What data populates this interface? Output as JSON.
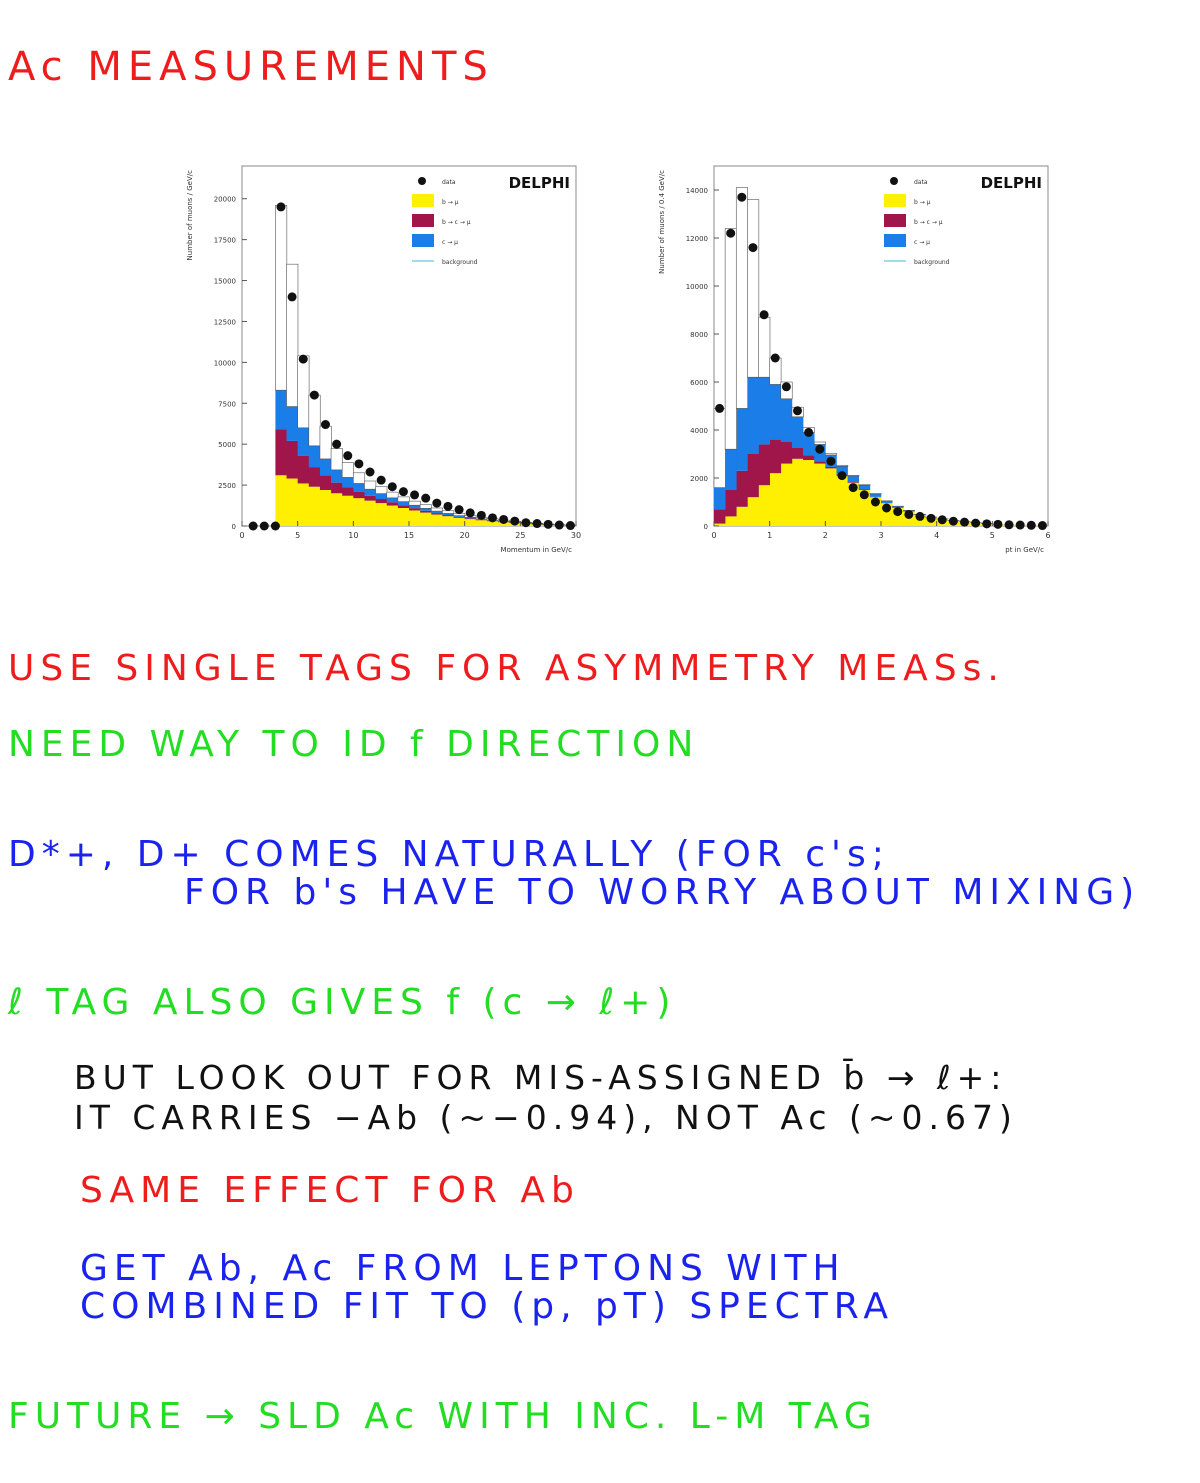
{
  "title": "Ac MEASUREMENTS",
  "charts": [
    {
      "experiment": "DELPHI",
      "ylabel": "Number of muons / GeV/c",
      "xlabel": "Momentum in GeV/c",
      "legend": [
        "data",
        "b → μ",
        "b → c → μ",
        "c → μ",
        "background"
      ]
    },
    {
      "experiment": "DELPHI",
      "ylabel": "Number of muons / 0.4 GeV/c",
      "xlabel": "pt in GeV/c",
      "legend": [
        "data",
        "b → μ",
        "b → c → μ",
        "c → μ",
        "background"
      ]
    }
  ],
  "chart_data": [
    {
      "type": "bar",
      "title": "DELPHI",
      "xlabel": "Momentum in GeV/c",
      "ylabel": "Number of muons / GeV/c",
      "xlim": [
        0,
        30
      ],
      "ylim": [
        0,
        22000
      ],
      "x_ticks": [
        0,
        5,
        10,
        15,
        20,
        25,
        30
      ],
      "y_ticks": [
        0,
        2500,
        5000,
        7500,
        10000,
        12500,
        15000,
        17500,
        20000
      ],
      "bin_edges": [
        3,
        4,
        5,
        6,
        7,
        8,
        9,
        10,
        11,
        12,
        13,
        14,
        15,
        16,
        17,
        18,
        19,
        20,
        21,
        22,
        23,
        24,
        25,
        26,
        27,
        28,
        29,
        30
      ],
      "series": [
        {
          "name": "b → μ",
          "color": "#ffef00",
          "values": [
            3100,
            2900,
            2600,
            2400,
            2200,
            2000,
            1850,
            1700,
            1550,
            1400,
            1250,
            1100,
            950,
            820,
            700,
            600,
            500,
            420,
            350,
            290,
            230,
            180,
            140,
            100,
            70,
            50,
            30
          ]
        },
        {
          "name": "b → c → μ",
          "color": "#a0154a",
          "values": [
            2800,
            2300,
            1700,
            1200,
            900,
            650,
            500,
            400,
            300,
            250,
            200,
            170,
            140,
            110,
            90,
            70,
            55,
            45,
            35,
            28,
            22,
            18,
            14,
            10,
            8,
            6,
            4
          ]
        },
        {
          "name": "c → μ",
          "color": "#1a7de8",
          "values": [
            2400,
            2100,
            1700,
            1300,
            1000,
            780,
            620,
            500,
            400,
            330,
            270,
            220,
            180,
            150,
            120,
            100,
            80,
            65,
            50,
            40,
            32,
            25,
            20,
            15,
            12,
            8,
            5
          ]
        },
        {
          "name": "background",
          "color": "#ffffff",
          "values": [
            11300,
            8700,
            4400,
            3100,
            2000,
            1300,
            900,
            650,
            500,
            420,
            350,
            290,
            250,
            220,
            190,
            160,
            140,
            120,
            100,
            85,
            70,
            55,
            45,
            35,
            25,
            15,
            10
          ]
        }
      ],
      "data_points": {
        "name": "data",
        "x": [
          1,
          2,
          3,
          3.5,
          4.5,
          5.5,
          6.5,
          7.5,
          8.5,
          9.5,
          10.5,
          11.5,
          12.5,
          13.5,
          14.5,
          15.5,
          16.5,
          17.5,
          18.5,
          19.5,
          20.5,
          21.5,
          22.5,
          23.5,
          24.5,
          25.5,
          26.5,
          27.5,
          28.5,
          29.5
        ],
        "y": [
          0,
          0,
          0,
          19500,
          14000,
          10200,
          8000,
          6200,
          5000,
          4300,
          3800,
          3300,
          2800,
          2400,
          2100,
          1900,
          1700,
          1400,
          1200,
          1000,
          800,
          650,
          500,
          400,
          300,
          200,
          150,
          100,
          60,
          30
        ]
      }
    },
    {
      "type": "bar",
      "title": "DELPHI",
      "xlabel": "pt in GeV/c",
      "ylabel": "Number of muons / 0.4 GeV/c",
      "xlim": [
        0,
        6
      ],
      "ylim": [
        0,
        15000
      ],
      "x_ticks": [
        0,
        1,
        2,
        3,
        4,
        5,
        6
      ],
      "y_ticks": [
        0,
        2000,
        4000,
        6000,
        8000,
        10000,
        12000,
        14000
      ],
      "bin_edges": [
        0,
        0.2,
        0.4,
        0.6,
        0.8,
        1.0,
        1.2,
        1.4,
        1.6,
        1.8,
        2.0,
        2.2,
        2.4,
        2.6,
        2.8,
        3.0,
        3.2,
        3.4,
        3.6,
        3.8,
        4.0,
        4.2,
        4.4,
        4.6,
        4.8,
        5.0,
        5.2,
        5.4,
        5.6,
        5.8,
        6.0
      ],
      "series": [
        {
          "name": "b → μ",
          "color": "#ffef00",
          "values": [
            100,
            400,
            800,
            1200,
            1700,
            2200,
            2600,
            2800,
            2750,
            2600,
            2400,
            2100,
            1800,
            1500,
            1200,
            950,
            750,
            600,
            450,
            350,
            280,
            220,
            170,
            130,
            100,
            80,
            60,
            45,
            30,
            20
          ]
        },
        {
          "name": "b → c → μ",
          "color": "#a0154a",
          "values": [
            600,
            1100,
            1500,
            1800,
            1700,
            1400,
            900,
            450,
            200,
            100,
            60,
            40,
            30,
            20,
            15,
            10,
            8,
            6,
            4,
            3,
            2,
            2,
            1,
            1,
            1,
            0,
            0,
            0,
            0,
            0
          ]
        },
        {
          "name": "c → μ",
          "color": "#1a7de8",
          "values": [
            900,
            1700,
            2600,
            3200,
            2800,
            2300,
            1800,
            1300,
            950,
            700,
            500,
            350,
            250,
            180,
            120,
            80,
            60,
            40,
            30,
            20,
            15,
            10,
            8,
            6,
            4,
            3,
            2,
            1,
            1,
            0
          ]
        },
        {
          "name": "background",
          "color": "#ffffff",
          "values": [
            3300,
            9200,
            9200,
            7400,
            2500,
            1100,
            700,
            400,
            200,
            100,
            60,
            40,
            30,
            20,
            15,
            10,
            8,
            6,
            4,
            3,
            2,
            2,
            1,
            1,
            1,
            0,
            0,
            0,
            0,
            0
          ]
        }
      ],
      "data_points": {
        "name": "data",
        "x": [
          0.1,
          0.3,
          0.5,
          0.7,
          0.9,
          1.1,
          1.3,
          1.5,
          1.7,
          1.9,
          2.1,
          2.3,
          2.5,
          2.7,
          2.9,
          3.1,
          3.3,
          3.5,
          3.7,
          3.9,
          4.1,
          4.3,
          4.5,
          4.7,
          4.9,
          5.1,
          5.3,
          5.5,
          5.7,
          5.9
        ],
        "y": [
          4900,
          12200,
          13700,
          11600,
          8800,
          7000,
          5800,
          4800,
          3900,
          3200,
          2700,
          2100,
          1600,
          1300,
          1000,
          750,
          600,
          480,
          400,
          320,
          260,
          200,
          160,
          120,
          90,
          70,
          50,
          40,
          30,
          20
        ]
      }
    }
  ],
  "notes": {
    "line1": "USE SINGLE TAGS FOR ASYMMETRY MEASs.",
    "line2": "NEED WAY TO ID f DIRECTION",
    "line3a": "D*+, D+ COMES NATURALLY (FOR c's;",
    "line3b": "FOR b's HAVE TO WORRY ABOUT MIXING)",
    "line4": "ℓ TAG ALSO GIVES f (c → ℓ+)",
    "line5a": "BUT LOOK OUT FOR MIS-ASSIGNED b̄ → ℓ+:",
    "line5b": "IT CARRIES −Ab (~−0.94), NOT Ac (~0.67)",
    "line6": "SAME EFFECT FOR Ab",
    "line7a": "GET Ab, Ac FROM LEPTONS WITH",
    "line7b": "COMBINED FIT TO (p, pT) SPECTRA",
    "line8": "FUTURE → SLD Ac WITH INC. L-M TAG"
  },
  "colors": {
    "red": "#ee1c1c",
    "green": "#22dd22",
    "blue": "#1a22ee",
    "black": "#111111"
  }
}
